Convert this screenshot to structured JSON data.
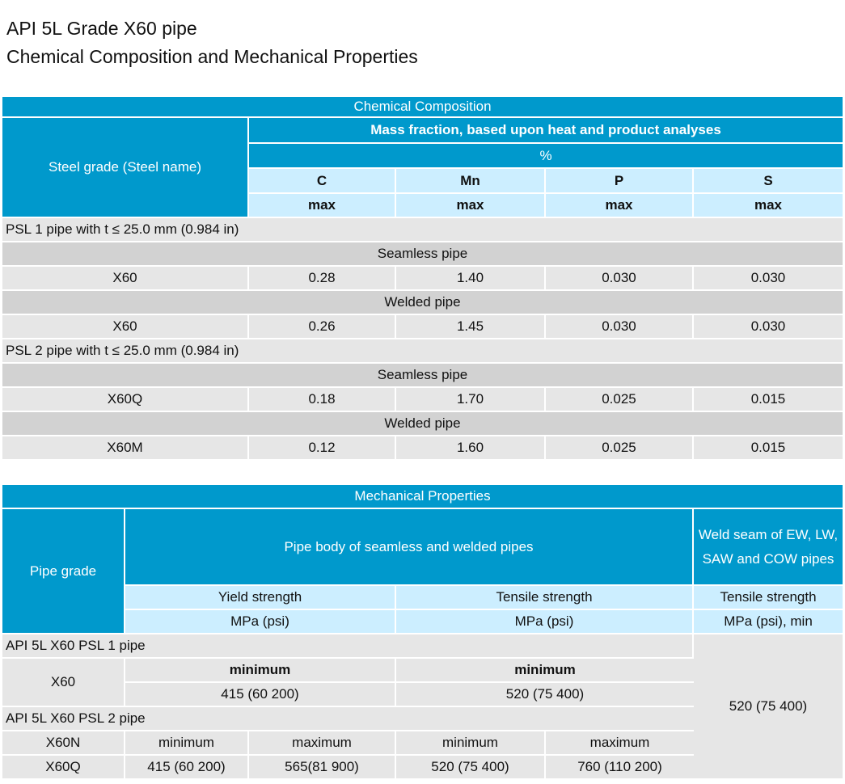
{
  "heading": {
    "line1": "API 5L Grade X60 pipe",
    "line2": "Chemical Composition and Mechanical Properties"
  },
  "colors": {
    "header_blue": "#0099cc",
    "subheader_light_blue": "#cceeff",
    "row_gray": "#e6e6e6",
    "section_gray": "#d2d2d2"
  },
  "chemical": {
    "title": "Chemical Composition",
    "grade_header": "Steel grade (Steel name)",
    "mass_header": "Mass fraction, based upon heat and product analyses",
    "unit": "%",
    "elements": [
      "C",
      "Mn",
      "P",
      "S"
    ],
    "limit": "max",
    "groups": [
      {
        "label": "PSL 1 pipe with t ≤ 25.0 mm (0.984 in)",
        "sections": [
          {
            "label": "Seamless pipe",
            "grade": "X60",
            "values": [
              "0.28",
              "1.40",
              "0.030",
              "0.030"
            ]
          },
          {
            "label": "Welded pipe",
            "grade": "X60",
            "values": [
              "0.26",
              "1.45",
              "0.030",
              "0.030"
            ]
          }
        ]
      },
      {
        "label": "PSL 2 pipe with t ≤ 25.0 mm (0.984 in)",
        "sections": [
          {
            "label": "Seamless pipe",
            "grade": "X60Q",
            "values": [
              "0.18",
              "1.70",
              "0.025",
              "0.015"
            ]
          },
          {
            "label": "Welded pipe",
            "grade": "X60M",
            "values": [
              "0.12",
              "1.60",
              "0.025",
              "0.015"
            ]
          }
        ]
      }
    ]
  },
  "mechanical": {
    "title": "Mechanical Properties",
    "grade_header": "Pipe grade",
    "body_header": "Pipe body of seamless and welded pipes",
    "weld_header": "Weld seam of EW, LW, SAW and COW pipes",
    "yield": "Yield strength",
    "tensile": "Tensile strength",
    "weld_tensile": "Tensile strength",
    "unit": "MPa (psi)",
    "weld_unit": "MPa (psi), min",
    "psl1": {
      "label": "API 5L X60 PSL 1 pipe",
      "grade": "X60",
      "yield_limit": "minimum",
      "yield_value": "415 (60 200)",
      "tensile_limit": "minimum",
      "tensile_value": "520 (75 400)"
    },
    "weld_value": "520 (75 400)",
    "psl2": {
      "label": "API 5L X60 PSL 2 pipe",
      "grade1": "X60N",
      "grade2": "X60Q",
      "limits": [
        "minimum",
        "maximum",
        "minimum",
        "maximum"
      ],
      "values": [
        "415 (60 200)",
        "565(81 900)",
        "520 (75 400)",
        "760 (110 200)"
      ]
    }
  }
}
